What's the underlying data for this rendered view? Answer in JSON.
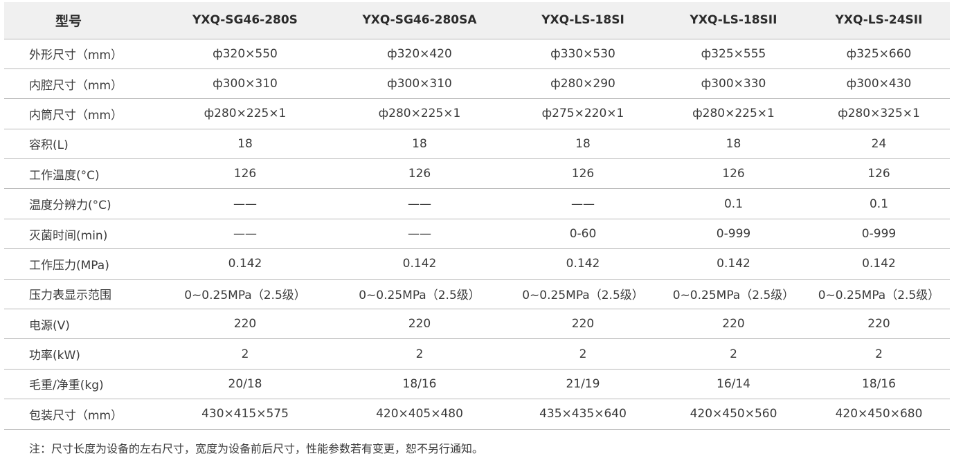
{
  "table": {
    "header": [
      "型号",
      "YXQ-SG46-280S",
      "YXQ-SG46-280SA",
      "YXQ-LS-18SI",
      "YXQ-LS-18SII",
      "YXQ-LS-24SII"
    ],
    "rows": [
      [
        "外形尺寸（mm）",
        "ф320×550",
        "ф320×420",
        "ф330×530",
        "ф325×555",
        "ф325×660"
      ],
      [
        "内腔尺寸（mm）",
        "ф300×310",
        "ф300×310",
        "ф280×290",
        "ф300×330",
        "ф300×430"
      ],
      [
        "内筒尺寸（mm）",
        "ф280×225×1",
        "ф280×225×1",
        "ф275×220×1",
        "ф280×225×1",
        "ф280×325×1"
      ],
      [
        "容积(L)",
        "18",
        "18",
        "18",
        "18",
        "24"
      ],
      [
        "工作温度(°C)",
        "126",
        "126",
        "126",
        "126",
        "126"
      ],
      [
        "温度分辨力(°C)",
        "——",
        "——",
        "——",
        "0.1",
        "0.1"
      ],
      [
        "灭菌时间(min)",
        "——",
        "——",
        "0-60",
        "0-999",
        "0-999"
      ],
      [
        "工作压力(MPa)",
        "0.142",
        "0.142",
        "0.142",
        "0.142",
        "0.142"
      ],
      [
        "压力表显示范围",
        "0~0.25MPa（2.5级）",
        "0~0.25MPa（2.5级）",
        "0~0.25MPa（2.5级）",
        "0~0.25MPa（2.5级）",
        "0~0.25MPa（2.5级）"
      ],
      [
        "电源(V)",
        "220",
        "220",
        "220",
        "220",
        "220"
      ],
      [
        "功率(kW)",
        "2",
        "2",
        "2",
        "2",
        "2"
      ],
      [
        "毛重/净重(kg)",
        "20/18",
        "18/16",
        "21/19",
        "16/14",
        "18/16"
      ],
      [
        "包装尺寸（mm）",
        "430×415×575",
        "420×405×480",
        "435×435×640",
        "420×450×560",
        "420×450×680"
      ]
    ]
  },
  "note": "注：尺寸长度为设备的左右尺寸，宽度为设备前后尺寸，性能参数若有变更，恕不另行通知。"
}
